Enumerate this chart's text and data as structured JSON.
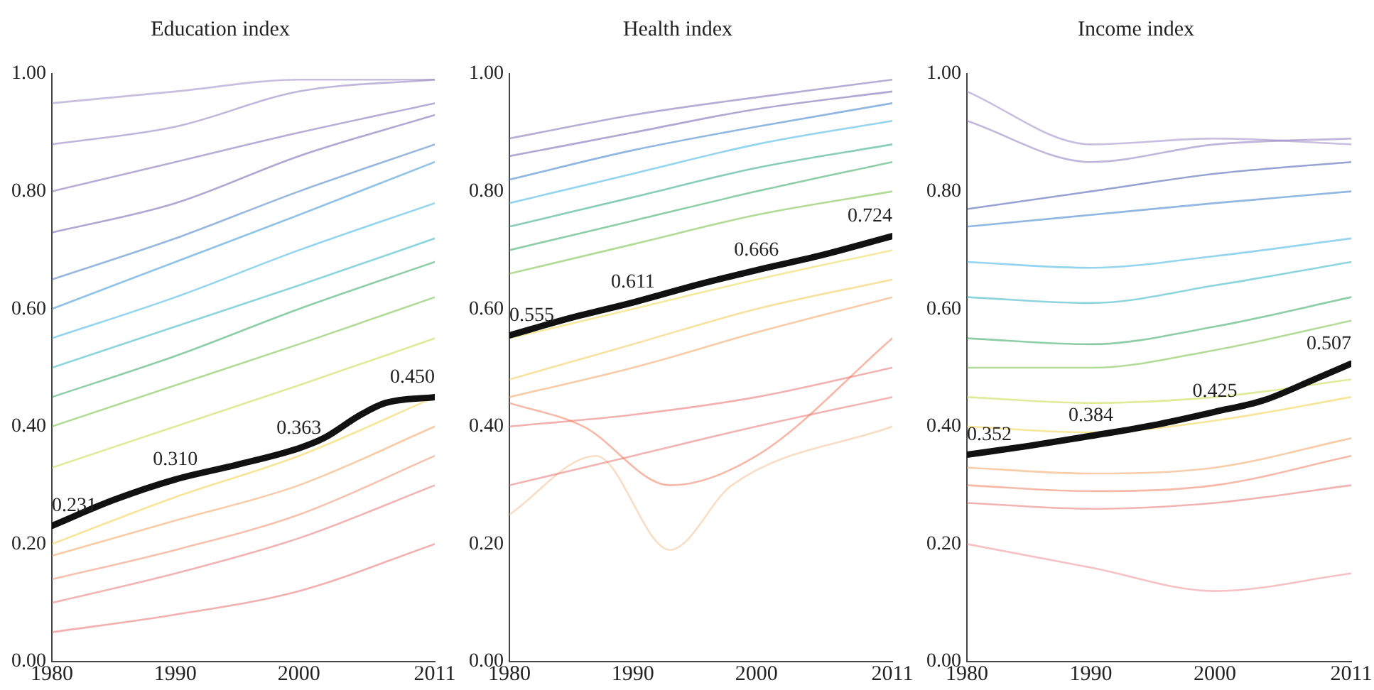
{
  "chart_data": [
    {
      "type": "line",
      "title": "Education index",
      "xlim": [
        1980,
        2011
      ],
      "xticks": [
        1980,
        1990,
        2000,
        2011
      ],
      "ylim": [
        0,
        1
      ],
      "yticks": [
        {
          "value": 0,
          "label": "0.00"
        },
        {
          "value": 0.2,
          "label": "0.20"
        },
        {
          "value": 0.4,
          "label": "0.40"
        },
        {
          "value": 0.6,
          "label": "0.60"
        },
        {
          "value": 0.8,
          "label": "0.80"
        },
        {
          "value": 1,
          "label": "1.00"
        }
      ],
      "grid": false,
      "marker": "none",
      "series": [
        {
          "color": "#9a86c4",
          "x": [
            1980,
            1990,
            2000,
            2011
          ],
          "values": [
            0.95,
            0.97,
            0.99,
            0.99
          ]
        },
        {
          "color": "#8b74bd",
          "x": [
            1980,
            1990,
            2000,
            2011
          ],
          "values": [
            0.88,
            0.91,
            0.97,
            0.99
          ]
        },
        {
          "color": "#7a63b3",
          "x": [
            1980,
            1990,
            2000,
            2011
          ],
          "values": [
            0.8,
            0.85,
            0.9,
            0.95
          ]
        },
        {
          "color": "#6c5aab",
          "x": [
            1980,
            1990,
            2000,
            2011
          ],
          "values": [
            0.73,
            0.78,
            0.86,
            0.93
          ]
        },
        {
          "color": "#3b78c2",
          "x": [
            1980,
            1990,
            2000,
            2011
          ],
          "values": [
            0.65,
            0.72,
            0.8,
            0.88
          ]
        },
        {
          "color": "#2f8fd0",
          "x": [
            1980,
            1990,
            2000,
            2011
          ],
          "values": [
            0.6,
            0.68,
            0.76,
            0.85
          ]
        },
        {
          "color": "#34aee0",
          "x": [
            1980,
            1990,
            2000,
            2011
          ],
          "values": [
            0.55,
            0.62,
            0.7,
            0.78
          ]
        },
        {
          "color": "#2ab0c0",
          "x": [
            1980,
            1990,
            2000,
            2011
          ],
          "values": [
            0.5,
            0.57,
            0.64,
            0.72
          ]
        },
        {
          "color": "#2aa35a",
          "x": [
            1980,
            1990,
            2000,
            2011
          ],
          "values": [
            0.45,
            0.52,
            0.6,
            0.68
          ]
        },
        {
          "color": "#6fbb3c",
          "x": [
            1980,
            1990,
            2000,
            2011
          ],
          "values": [
            0.4,
            0.47,
            0.54,
            0.62
          ]
        },
        {
          "color": "#c8d840",
          "x": [
            1980,
            1990,
            2000,
            2011
          ],
          "values": [
            0.33,
            0.4,
            0.47,
            0.55
          ]
        },
        {
          "color": "#f0d040",
          "x": [
            1980,
            1990,
            2000,
            2011
          ],
          "values": [
            0.2,
            0.28,
            0.35,
            0.45
          ]
        },
        {
          "color": "#f2a05a",
          "x": [
            1980,
            1990,
            2000,
            2011
          ],
          "values": [
            0.18,
            0.24,
            0.3,
            0.4
          ]
        },
        {
          "color": "#ee8a66",
          "x": [
            1980,
            1990,
            2000,
            2011
          ],
          "values": [
            0.14,
            0.19,
            0.25,
            0.35
          ]
        },
        {
          "color": "#e77070",
          "x": [
            1980,
            1990,
            2000,
            2011
          ],
          "values": [
            0.1,
            0.15,
            0.21,
            0.3
          ]
        },
        {
          "color": "#e86a6a",
          "x": [
            1980,
            1990,
            2000,
            2011
          ],
          "values": [
            0.05,
            0.08,
            0.12,
            0.2
          ]
        },
        {
          "color": "#111111",
          "x": [
            1980,
            1985,
            1990,
            1995,
            2000,
            2002,
            2005,
            2007,
            2011
          ],
          "values": [
            0.231,
            0.275,
            0.31,
            0.335,
            0.363,
            0.38,
            0.42,
            0.44,
            0.45
          ],
          "value_labels": [
            "0.231",
            null,
            "0.310",
            null,
            "0.363",
            null,
            null,
            null,
            "0.450"
          ]
        }
      ]
    },
    {
      "type": "line",
      "title": "Health index",
      "xlim": [
        1980,
        2011
      ],
      "xticks": [
        1980,
        1990,
        2000,
        2011
      ],
      "ylim": [
        0,
        1
      ],
      "yticks": [
        {
          "value": 0,
          "label": "0.00"
        },
        {
          "value": 0.2,
          "label": "0.20"
        },
        {
          "value": 0.4,
          "label": "0.40"
        },
        {
          "value": 0.6,
          "label": "0.60"
        },
        {
          "value": 0.8,
          "label": "0.80"
        },
        {
          "value": 1,
          "label": "1.00"
        }
      ],
      "grid": false,
      "marker": "none",
      "series": [
        {
          "color": "#7a63b3",
          "x": [
            1980,
            1990,
            2000,
            2011
          ],
          "values": [
            0.89,
            0.93,
            0.96,
            0.99
          ]
        },
        {
          "color": "#6c5aab",
          "x": [
            1980,
            1990,
            2000,
            2011
          ],
          "values": [
            0.86,
            0.9,
            0.94,
            0.97
          ]
        },
        {
          "color": "#2f78c8",
          "x": [
            1980,
            1990,
            2000,
            2011
          ],
          "values": [
            0.82,
            0.87,
            0.91,
            0.95
          ]
        },
        {
          "color": "#34aee0",
          "x": [
            1980,
            1990,
            2000,
            2011
          ],
          "values": [
            0.78,
            0.83,
            0.88,
            0.92
          ]
        },
        {
          "color": "#20a080",
          "x": [
            1980,
            1990,
            2000,
            2011
          ],
          "values": [
            0.74,
            0.79,
            0.84,
            0.88
          ]
        },
        {
          "color": "#2aa35a",
          "x": [
            1980,
            1990,
            2000,
            2011
          ],
          "values": [
            0.7,
            0.75,
            0.8,
            0.85
          ]
        },
        {
          "color": "#6fbb3c",
          "x": [
            1980,
            1990,
            2000,
            2011
          ],
          "values": [
            0.66,
            0.71,
            0.76,
            0.8
          ]
        },
        {
          "color": "#e8d84a",
          "x": [
            1980,
            1990,
            2000,
            2011
          ],
          "values": [
            0.55,
            0.6,
            0.65,
            0.7
          ]
        },
        {
          "color": "#f0c850",
          "x": [
            1980,
            1990,
            2000,
            2011
          ],
          "values": [
            0.48,
            0.54,
            0.6,
            0.65
          ]
        },
        {
          "color": "#f2a05a",
          "x": [
            1980,
            1990,
            2000,
            2011
          ],
          "values": [
            0.45,
            0.5,
            0.56,
            0.62
          ]
        },
        {
          "color": "#ee7a5a",
          "x": [
            1980,
            1986,
            1993,
            2000,
            2011
          ],
          "values": [
            0.44,
            0.4,
            0.3,
            0.35,
            0.55
          ]
        },
        {
          "color": "#e86a6a",
          "x": [
            1980,
            1990,
            2000,
            2011
          ],
          "values": [
            0.4,
            0.42,
            0.45,
            0.5
          ]
        },
        {
          "color": "#e77070",
          "x": [
            1980,
            1990,
            2000,
            2011
          ],
          "values": [
            0.3,
            0.35,
            0.4,
            0.45
          ]
        },
        {
          "color": "#f4c090",
          "x": [
            1980,
            1987,
            1993,
            1998,
            2011
          ],
          "values": [
            0.25,
            0.35,
            0.19,
            0.3,
            0.4
          ]
        },
        {
          "color": "#111111",
          "x": [
            1980,
            1985,
            1990,
            1995,
            2000,
            2005,
            2011
          ],
          "values": [
            0.555,
            0.585,
            0.611,
            0.64,
            0.666,
            0.69,
            0.724
          ],
          "value_labels": [
            "0.555",
            null,
            "0.611",
            null,
            "0.666",
            null,
            "0.724"
          ]
        }
      ]
    },
    {
      "type": "line",
      "title": "Income index",
      "xlim": [
        1980,
        2011
      ],
      "xticks": [
        1980,
        1990,
        2000,
        2011
      ],
      "ylim": [
        0,
        1
      ],
      "yticks": [
        {
          "value": 0,
          "label": "0.00"
        },
        {
          "value": 0.2,
          "label": "0.20"
        },
        {
          "value": 0.4,
          "label": "0.40"
        },
        {
          "value": 0.6,
          "label": "0.60"
        },
        {
          "value": 0.8,
          "label": "0.80"
        },
        {
          "value": 1,
          "label": "1.00"
        }
      ],
      "grid": false,
      "marker": "none",
      "series": [
        {
          "color": "#9a86c4",
          "x": [
            1980,
            1990,
            2000,
            2011
          ],
          "values": [
            0.97,
            0.88,
            0.89,
            0.88
          ]
        },
        {
          "color": "#8b74bd",
          "x": [
            1980,
            1990,
            2000,
            2011
          ],
          "values": [
            0.92,
            0.85,
            0.88,
            0.89
          ]
        },
        {
          "color": "#3b50a8",
          "x": [
            1980,
            1990,
            2000,
            2011
          ],
          "values": [
            0.77,
            0.8,
            0.83,
            0.85
          ]
        },
        {
          "color": "#2f78c8",
          "x": [
            1980,
            1990,
            2000,
            2011
          ],
          "values": [
            0.74,
            0.76,
            0.78,
            0.8
          ]
        },
        {
          "color": "#34aee0",
          "x": [
            1980,
            1990,
            2000,
            2011
          ],
          "values": [
            0.68,
            0.67,
            0.69,
            0.72
          ]
        },
        {
          "color": "#2ab0c0",
          "x": [
            1980,
            1990,
            2000,
            2011
          ],
          "values": [
            0.62,
            0.61,
            0.64,
            0.68
          ]
        },
        {
          "color": "#2aa35a",
          "x": [
            1980,
            1990,
            2000,
            2011
          ],
          "values": [
            0.55,
            0.54,
            0.57,
            0.62
          ]
        },
        {
          "color": "#6fbb3c",
          "x": [
            1980,
            1990,
            2000,
            2011
          ],
          "values": [
            0.5,
            0.5,
            0.53,
            0.58
          ]
        },
        {
          "color": "#c8d840",
          "x": [
            1980,
            1990,
            2000,
            2011
          ],
          "values": [
            0.45,
            0.44,
            0.45,
            0.48
          ]
        },
        {
          "color": "#f0d040",
          "x": [
            1980,
            1990,
            2000,
            2011
          ],
          "values": [
            0.4,
            0.39,
            0.41,
            0.45
          ]
        },
        {
          "color": "#f2a05a",
          "x": [
            1980,
            1990,
            2000,
            2011
          ],
          "values": [
            0.33,
            0.32,
            0.33,
            0.38
          ]
        },
        {
          "color": "#ee7a5a",
          "x": [
            1980,
            1990,
            2000,
            2011
          ],
          "values": [
            0.3,
            0.29,
            0.3,
            0.35
          ]
        },
        {
          "color": "#e77070",
          "x": [
            1980,
            1990,
            2000,
            2011
          ],
          "values": [
            0.27,
            0.26,
            0.27,
            0.3
          ]
        },
        {
          "color": "#ec8a90",
          "x": [
            1980,
            1990,
            2000,
            2011
          ],
          "values": [
            0.2,
            0.16,
            0.12,
            0.15
          ]
        },
        {
          "color": "#111111",
          "x": [
            1980,
            1985,
            1990,
            1995,
            2000,
            2004,
            2008,
            2011
          ],
          "values": [
            0.352,
            0.367,
            0.384,
            0.402,
            0.425,
            0.445,
            0.48,
            0.507
          ],
          "value_labels": [
            "0.352",
            null,
            "0.384",
            null,
            "0.425",
            null,
            null,
            "0.507"
          ]
        }
      ]
    }
  ]
}
